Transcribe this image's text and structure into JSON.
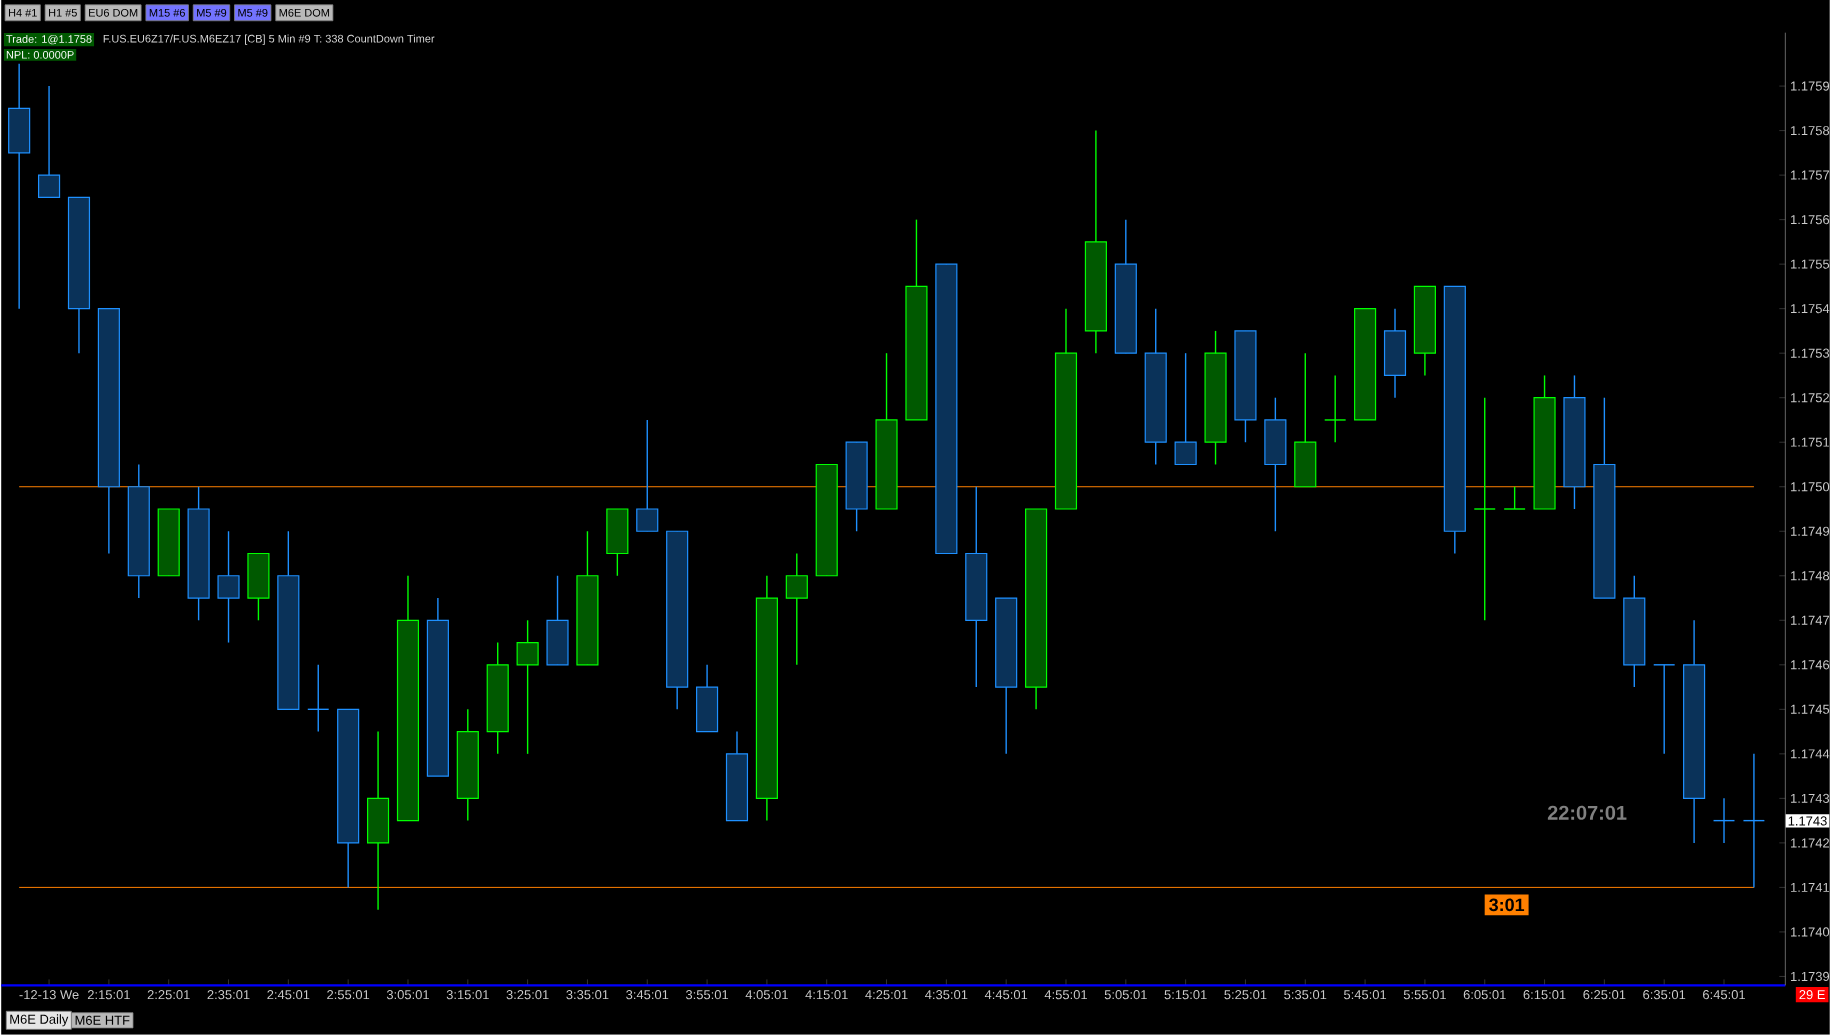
{
  "chart_data": {
    "type": "candlestick",
    "categories": [
      null,
      "-12-13 We",
      null,
      "2:15:01",
      null,
      "2:25:01",
      null,
      "2:35:01",
      null,
      "2:45:01",
      null,
      "2:55:01",
      null,
      "3:05:01",
      null,
      "3:15:01",
      null,
      "3:25:01",
      null,
      "3:35:01",
      null,
      "3:45:01",
      null,
      "3:55:01",
      null,
      "4:05:01",
      null,
      "4:15:01",
      null,
      "4:25:01",
      null,
      "4:35:01",
      null,
      "4:45:01",
      null,
      "4:55:01",
      null,
      "5:05:01",
      null,
      "5:15:01",
      null,
      "5:25:01",
      null,
      "5:35:01",
      null,
      "5:45:01",
      null,
      "5:55:01",
      null,
      "6:05:01",
      null,
      "6:15:01",
      null,
      "6:25:01",
      null,
      "6:35:01",
      null,
      "6:45:01",
      null
    ],
    "ohlc": [
      [
        1.17585,
        1.17595,
        1.1754,
        1.17575
      ],
      [
        1.1757,
        1.1759,
        1.17565,
        1.17565
      ],
      [
        1.17565,
        1.17565,
        1.1753,
        1.1754
      ],
      [
        1.1754,
        1.1754,
        1.17485,
        1.175
      ],
      [
        1.175,
        1.17505,
        1.17475,
        1.1748
      ],
      [
        1.1748,
        1.17495,
        1.1748,
        1.17495
      ],
      [
        1.17495,
        1.175,
        1.1747,
        1.17475
      ],
      [
        1.1748,
        1.1749,
        1.17465,
        1.17475
      ],
      [
        1.17475,
        1.17485,
        1.1747,
        1.17485
      ],
      [
        1.1748,
        1.1749,
        1.1745,
        1.1745
      ],
      [
        1.1745,
        1.1746,
        1.17445,
        1.1745
      ],
      [
        1.1745,
        1.1745,
        1.1741,
        1.1742
      ],
      [
        1.1742,
        1.17445,
        1.17405,
        1.1743
      ],
      [
        1.17425,
        1.1748,
        1.17425,
        1.1747
      ],
      [
        1.1747,
        1.17475,
        1.17435,
        1.17435
      ],
      [
        1.1743,
        1.1745,
        1.17425,
        1.17445
      ],
      [
        1.17445,
        1.17465,
        1.1744,
        1.1746
      ],
      [
        1.1746,
        1.1747,
        1.1744,
        1.17465
      ],
      [
        1.1747,
        1.1748,
        1.1746,
        1.1746
      ],
      [
        1.1746,
        1.1749,
        1.1746,
        1.1748
      ],
      [
        1.17485,
        1.17495,
        1.1748,
        1.17495
      ],
      [
        1.17495,
        1.17515,
        1.1749,
        1.1749
      ],
      [
        1.1749,
        1.1749,
        1.1745,
        1.17455
      ],
      [
        1.17455,
        1.1746,
        1.17445,
        1.17445
      ],
      [
        1.1744,
        1.17445,
        1.17425,
        1.17425
      ],
      [
        1.1743,
        1.1748,
        1.17425,
        1.17475
      ],
      [
        1.17475,
        1.17485,
        1.1746,
        1.1748
      ],
      [
        1.1748,
        1.17505,
        1.1748,
        1.17505
      ],
      [
        1.1751,
        1.1751,
        1.1749,
        1.17495
      ],
      [
        1.17495,
        1.1753,
        1.17495,
        1.17515
      ],
      [
        1.17515,
        1.1756,
        1.17515,
        1.17545
      ],
      [
        1.1755,
        1.1755,
        1.17485,
        1.17485
      ],
      [
        1.17485,
        1.175,
        1.17455,
        1.1747
      ],
      [
        1.17475,
        1.17475,
        1.1744,
        1.17455
      ],
      [
        1.17455,
        1.17495,
        1.1745,
        1.17495
      ],
      [
        1.17495,
        1.1754,
        1.17495,
        1.1753
      ],
      [
        1.17535,
        1.1758,
        1.1753,
        1.17555
      ],
      [
        1.1755,
        1.1756,
        1.1753,
        1.1753
      ],
      [
        1.1753,
        1.1754,
        1.17505,
        1.1751
      ],
      [
        1.1751,
        1.1753,
        1.17505,
        1.17505
      ],
      [
        1.1751,
        1.17535,
        1.17505,
        1.1753
      ],
      [
        1.17535,
        1.17535,
        1.1751,
        1.17515
      ],
      [
        1.17515,
        1.1752,
        1.1749,
        1.17505
      ],
      [
        1.175,
        1.1753,
        1.175,
        1.1751
      ],
      [
        1.17515,
        1.17525,
        1.1751,
        1.17515
      ],
      [
        1.17515,
        1.1754,
        1.17515,
        1.1754
      ],
      [
        1.17535,
        1.1754,
        1.1752,
        1.17525
      ],
      [
        1.1753,
        1.17545,
        1.17525,
        1.17545
      ],
      [
        1.17545,
        1.17545,
        1.17485,
        1.1749
      ],
      [
        1.17495,
        1.1752,
        1.1747,
        1.17495
      ],
      [
        1.17495,
        1.175,
        1.17495,
        1.17495
      ],
      [
        1.17495,
        1.17525,
        1.17495,
        1.1752
      ],
      [
        1.1752,
        1.17525,
        1.17495,
        1.175
      ],
      [
        1.17505,
        1.1752,
        1.17475,
        1.17475
      ],
      [
        1.17475,
        1.1748,
        1.17455,
        1.1746
      ],
      [
        1.1746,
        1.1746,
        1.1744,
        1.1746
      ],
      [
        1.1746,
        1.1747,
        1.1742,
        1.1743
      ],
      [
        1.17425,
        1.1743,
        1.1742,
        1.17425
      ],
      [
        1.17425,
        1.1744,
        1.1741,
        1.17425
      ]
    ],
    "colors": [
      "#1e90ff",
      "#1e90ff",
      "#1e90ff",
      "#1e90ff",
      "#1e90ff",
      "#00ff00",
      "#1e90ff",
      "#1e90ff",
      "#00ff00",
      "#1e90ff",
      "#1e90ff",
      "#1e90ff",
      "#00ff00",
      "#00ff00",
      "#1e90ff",
      "#00ff00",
      "#00ff00",
      "#00ff00",
      "#1e90ff",
      "#00ff00",
      "#00ff00",
      "#1e90ff",
      "#1e90ff",
      "#1e90ff",
      "#1e90ff",
      "#00ff00",
      "#00ff00",
      "#00ff00",
      "#1e90ff",
      "#00ff00",
      "#00ff00",
      "#1e90ff",
      "#1e90ff",
      "#1e90ff",
      "#00ff00",
      "#00ff00",
      "#00ff00",
      "#1e90ff",
      "#1e90ff",
      "#1e90ff",
      "#00ff00",
      "#1e90ff",
      "#1e90ff",
      "#00ff00",
      "#00ff00",
      "#00ff00",
      "#1e90ff",
      "#00ff00",
      "#1e90ff",
      "#00ff00",
      "#00ff00",
      "#00ff00",
      "#1e90ff",
      "#1e90ff",
      "#1e90ff",
      "#1e90ff",
      "#1e90ff",
      "#1e90ff",
      "#1e90ff"
    ],
    "ylim": [
      1.17388,
      1.17602
    ],
    "yticks": [
      1.1739,
      {
        "value": 1.174,
        "label": "1.1740"
      },
      1.1741,
      1.1742,
      1.1743,
      1.1744,
      1.1745,
      1.1746,
      1.1747,
      1.1748,
      1.1749,
      {
        "value": 1.175,
        "label": "1.1750"
      },
      1.1751,
      1.1752,
      1.1753,
      1.1754,
      1.1755,
      1.1756,
      1.1757,
      1.1758,
      1.1759
    ],
    "ref_lines": [
      {
        "axis": "y",
        "value": 1.175,
        "color": "#ff8000"
      },
      {
        "axis": "y",
        "value": 1.1741,
        "color": "#ff8000"
      }
    ],
    "annotations": [
      "Trade: 1@1.1758",
      "F.US.EU6Z17/F.US.M6EZ17 [CB]  5 Min   #9 T: 338 CountDown Timer",
      "NPL: 0.0000P",
      "22:07:01",
      "3:01",
      "1.1743",
      "29 E",
      "H4  #1",
      "H1  #5",
      "EU6 DOM",
      "M15  #6",
      "M5  #9",
      "M5  #9",
      "M6E DOM",
      "M6E Daily",
      "M6E HTF"
    ]
  }
}
